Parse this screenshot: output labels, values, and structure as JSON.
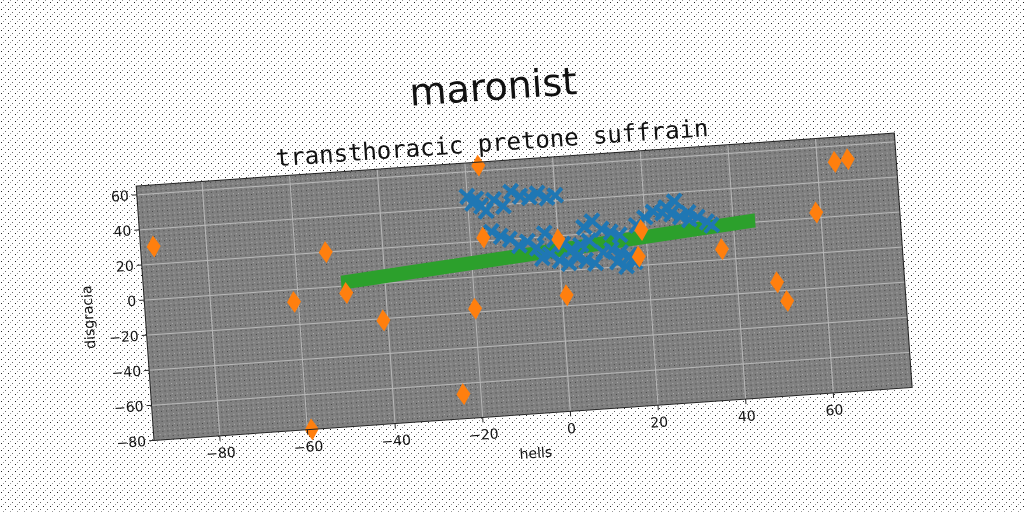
{
  "chart_data": {
    "type": "scatter",
    "suptitle": "maronist",
    "title": "transthoracic pretone suffrain",
    "xlabel": "hells",
    "ylabel": "disgracia",
    "xlim": [
      -95,
      78
    ],
    "ylim": [
      -80,
      65
    ],
    "xticks": [
      -80,
      -60,
      -40,
      -20,
      0,
      20,
      40,
      60
    ],
    "yticks": [
      -80,
      -60,
      -40,
      -20,
      0,
      20,
      40,
      60
    ],
    "xtick_labels": [
      "−80",
      "−60",
      "−40",
      "−20",
      "0",
      "20",
      "40",
      "60"
    ],
    "ytick_labels": [
      "−80",
      "−60",
      "−40",
      "−20",
      "0",
      "20",
      "40",
      "60"
    ],
    "grid": true,
    "background_color": "#808080",
    "series": [
      {
        "marker": "x",
        "color": "#1f77b4",
        "points": [
          [
            -20,
            46
          ],
          [
            -19,
            42
          ],
          [
            -18,
            44
          ],
          [
            -17,
            40
          ],
          [
            -14,
            43
          ],
          [
            -10,
            47
          ],
          [
            -8,
            44
          ],
          [
            -6,
            43
          ],
          [
            -4,
            45
          ],
          [
            -2,
            42
          ],
          [
            0,
            43
          ],
          [
            -12,
            39
          ],
          [
            -16,
            37
          ],
          [
            -15,
            25
          ],
          [
            -13,
            22
          ],
          [
            -11,
            20
          ],
          [
            -9,
            16
          ],
          [
            -7,
            18
          ],
          [
            -5,
            14
          ],
          [
            -3,
            22
          ],
          [
            -1,
            18
          ],
          [
            1,
            15
          ],
          [
            3,
            12
          ],
          [
            5,
            14
          ],
          [
            7,
            16
          ],
          [
            -4,
            8
          ],
          [
            -2,
            10
          ],
          [
            0,
            6
          ],
          [
            2,
            4
          ],
          [
            4,
            7
          ],
          [
            6,
            5
          ],
          [
            8,
            3
          ],
          [
            10,
            9
          ],
          [
            6,
            24
          ],
          [
            8,
            27
          ],
          [
            10,
            22
          ],
          [
            12,
            20
          ],
          [
            14,
            18
          ],
          [
            12,
            10
          ],
          [
            14,
            8
          ],
          [
            16,
            6
          ],
          [
            13,
            3
          ],
          [
            15,
            0
          ],
          [
            17,
            2
          ],
          [
            18,
            23
          ],
          [
            20,
            27
          ],
          [
            22,
            30
          ],
          [
            24,
            29
          ],
          [
            26,
            28
          ],
          [
            28,
            26
          ],
          [
            30,
            24
          ],
          [
            25,
            32
          ],
          [
            27,
            35
          ],
          [
            30,
            28
          ],
          [
            32,
            25
          ],
          [
            34,
            22
          ],
          [
            35,
            20
          ]
        ]
      },
      {
        "marker": "d",
        "color": "#ff7f0e",
        "points": [
          [
            -92,
            30
          ],
          [
            -61,
            -7
          ],
          [
            -59,
            -80
          ],
          [
            -53,
            20
          ],
          [
            -49,
            -4
          ],
          [
            -41,
            -21
          ],
          [
            -24,
            -66
          ],
          [
            -20,
            -18
          ],
          [
            -17,
            63
          ],
          [
            -17,
            22
          ],
          [
            0,
            18
          ],
          [
            1,
            -14
          ],
          [
            18,
            5
          ],
          [
            19,
            20
          ],
          [
            37,
            6
          ],
          [
            49,
            -15
          ],
          [
            51,
            -26
          ],
          [
            59,
            23
          ],
          [
            64,
            51
          ],
          [
            67,
            52
          ]
        ]
      }
    ],
    "bar": {
      "color": "#2ca02c",
      "x0": -50,
      "x1": 45,
      "y0_left": -2,
      "y1_left": 6,
      "y0_right": 17,
      "y1_right": 25
    }
  }
}
